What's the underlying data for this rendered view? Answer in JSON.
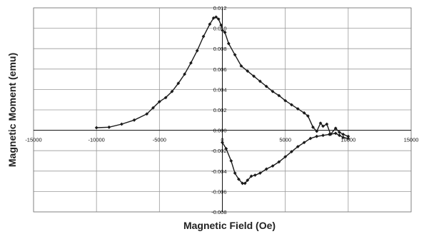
{
  "chart_data": {
    "type": "scatter",
    "title": "",
    "xlabel": "Magnetic Field (Oe)",
    "ylabel": "Magnetic Moment (emu)",
    "xlim": [
      -15000,
      15000
    ],
    "ylim": [
      -0.008,
      0.012
    ],
    "xticks": [
      -15000,
      -10000,
      -5000,
      0,
      5000,
      10000,
      15000
    ],
    "yticks": [
      -0.008,
      -0.006,
      -0.004,
      -0.002,
      0.0,
      0.002,
      0.004,
      0.006,
      0.008,
      0.01,
      0.012
    ],
    "xtick_labels": [
      "-15000",
      "-10000",
      "-5000",
      "0",
      "5000",
      "10000",
      "15000"
    ],
    "ytick_labels": [
      "-0.008",
      "-0.006",
      "-0.004",
      "-0.002",
      "0.000",
      "0.002",
      "0.004",
      "0.006",
      "0.008",
      "0.010",
      "0.012"
    ],
    "grid": true,
    "marker": "diamond",
    "line_color": "#1a1a1a",
    "grid_color": "#9a9a9a",
    "series": [
      {
        "x": [
          -10000,
          -9000,
          -8000,
          -7000,
          -6000,
          -5500,
          -5000,
          -4500,
          -4000,
          -3500,
          -3000,
          -2500,
          -2000,
          -1500,
          -1000,
          -700,
          -500,
          -300,
          -100,
          0,
          200
        ],
        "y": [
          0.00025,
          0.0003,
          0.0006,
          0.001,
          0.0016,
          0.0022,
          0.0028,
          0.0032,
          0.0038,
          0.0046,
          0.0055,
          0.0066,
          0.0078,
          0.0092,
          0.0104,
          0.011,
          0.0111,
          0.0109,
          0.0103,
          0.0098,
          0.0096
        ]
      },
      {
        "x": [
          200,
          500,
          1000,
          1500,
          2000,
          2500,
          3000,
          3500,
          4000,
          4500,
          5000,
          5500,
          6000,
          6500,
          6800,
          7200,
          7500,
          7800,
          8000,
          8300,
          8600,
          9000,
          9300,
          9600,
          10000
        ],
        "y": [
          0.0096,
          0.0085,
          0.0074,
          0.0063,
          0.0058,
          0.0053,
          0.0048,
          0.0043,
          0.0038,
          0.0034,
          0.0029,
          0.0025,
          0.0021,
          0.0017,
          0.0014,
          0.0003,
          -0.0001,
          0.0007,
          0.0004,
          0.0006,
          -0.0004,
          0.0002,
          -0.0002,
          -0.0004,
          -0.0006
        ]
      },
      {
        "x": [
          0,
          300,
          700,
          1000,
          1300,
          1600,
          1800,
          2000,
          2300,
          2600,
          3000,
          3500,
          4000,
          4500,
          5000,
          5500,
          6000,
          6500,
          7000,
          7500,
          8000,
          8500,
          9000,
          9300,
          9600,
          10000
        ],
        "y": [
          -0.0012,
          -0.0018,
          -0.003,
          -0.0042,
          -0.0048,
          -0.0052,
          -0.0052,
          -0.0049,
          -0.0045,
          -0.0044,
          -0.0042,
          -0.0038,
          -0.0035,
          -0.0031,
          -0.0026,
          -0.0021,
          -0.0016,
          -0.0012,
          -0.0008,
          -0.0006,
          -0.0005,
          -0.0004,
          -0.0003,
          -0.0005,
          -0.0007,
          -0.0008
        ]
      }
    ]
  }
}
